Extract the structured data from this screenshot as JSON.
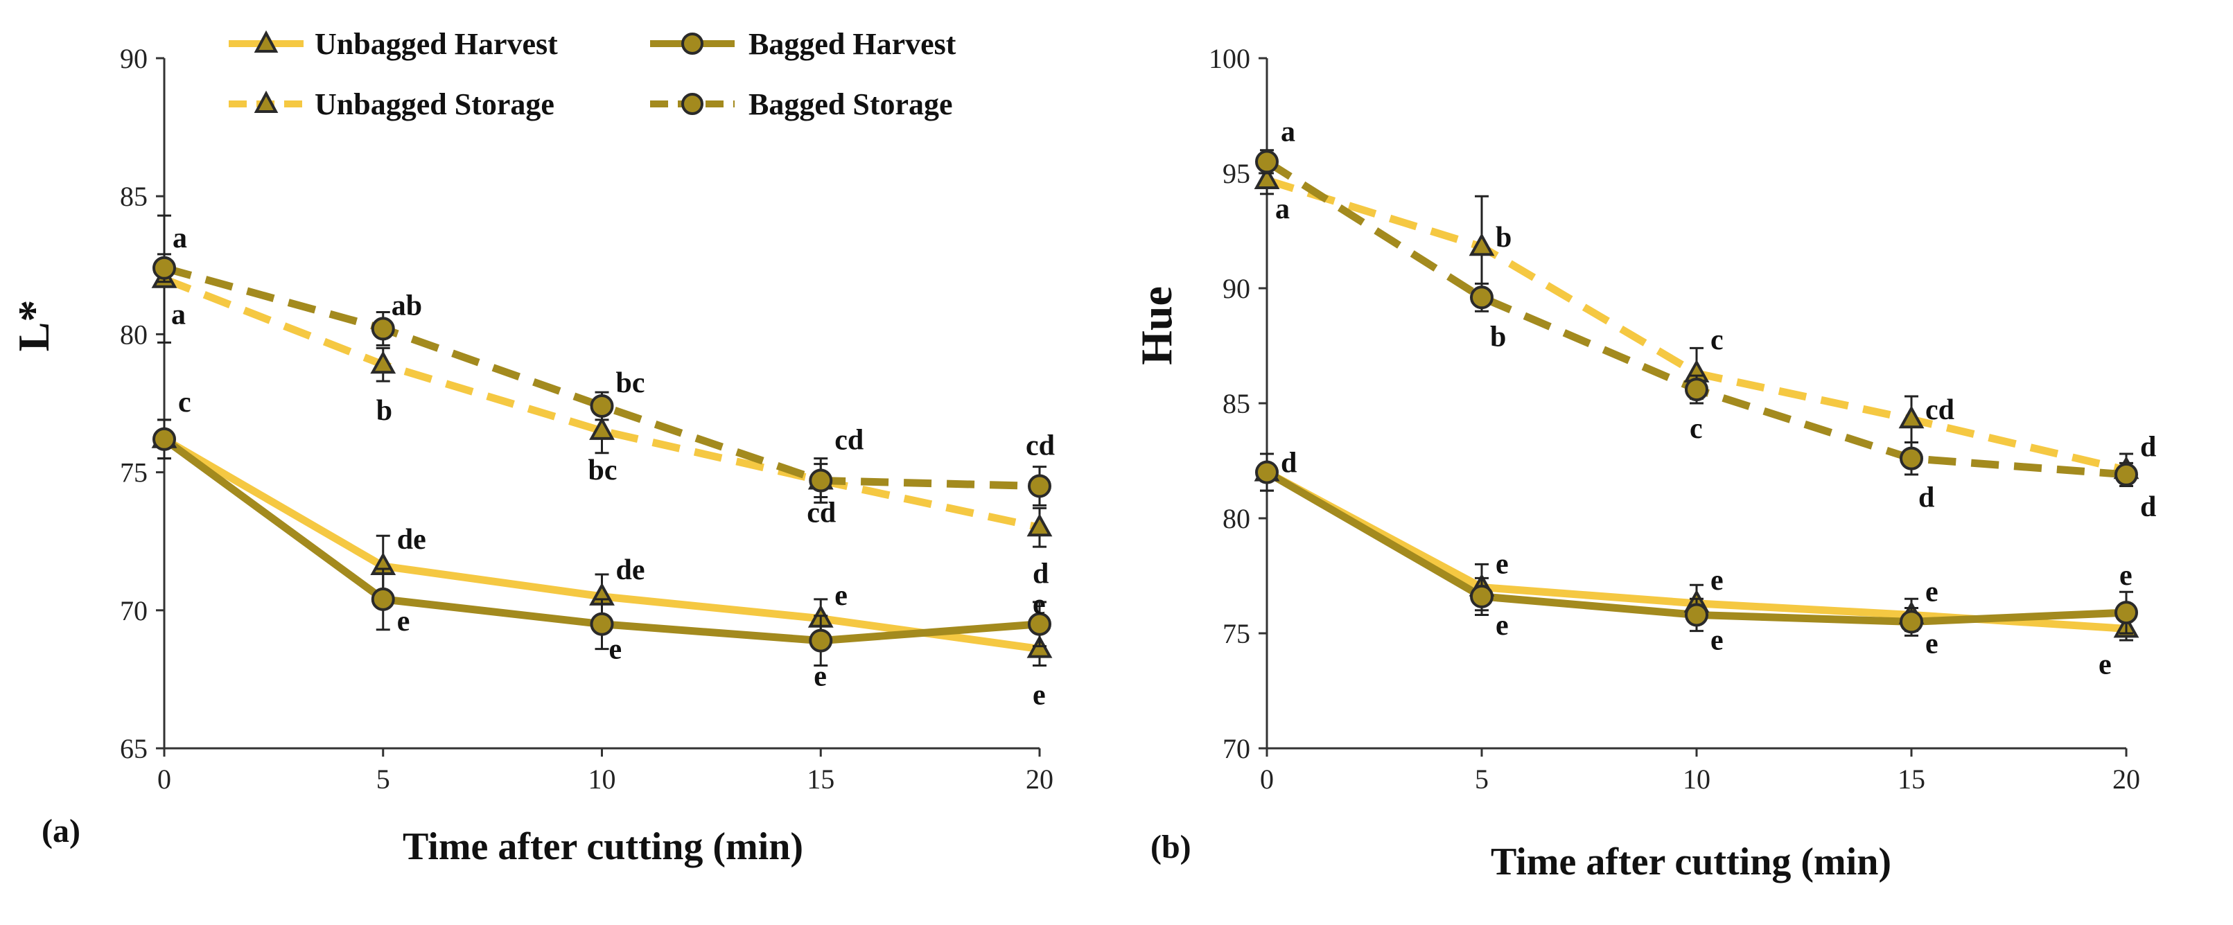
{
  "legend": {
    "unbagged_harvest": "Unbagged Harvest",
    "bagged_harvest": "Bagged Harvest",
    "unbagged_storage": "Unbagged Storage",
    "bagged_storage": "Bagged Storage"
  },
  "colors": {
    "unbagged": "#f5c842",
    "bagged": "#a38a1e",
    "marker_fill": "#a38a1e",
    "marker_stroke": "#2a2a2a",
    "axis": "#333333"
  },
  "chart_data": [
    {
      "type": "line",
      "panel_label": "(a)",
      "xlabel": "Time after cutting (min)",
      "ylabel": "L*",
      "x": [
        0,
        5,
        10,
        15,
        20
      ],
      "xticks": [
        "0",
        "5",
        "10",
        "15",
        "20"
      ],
      "yticks": [
        "65",
        "70",
        "75",
        "80",
        "85",
        "90"
      ],
      "xlim": [
        0,
        20
      ],
      "ylim": [
        65,
        90
      ],
      "series": [
        {
          "name": "Unbagged Harvest",
          "values": [
            76.2,
            71.6,
            70.5,
            69.7,
            68.6
          ],
          "errors": [
            0.7,
            1.1,
            0.8,
            0.7,
            0.6
          ],
          "letters": [
            "",
            "de",
            "de",
            "e",
            "e"
          ]
        },
        {
          "name": "Bagged Harvest",
          "values": [
            76.2,
            70.4,
            69.5,
            68.9,
            69.5
          ],
          "errors": [
            0.7,
            1.1,
            0.9,
            0.9,
            0.8
          ],
          "letters": [
            "c",
            "e",
            "e",
            "e",
            "e"
          ]
        },
        {
          "name": "Unbagged Storage",
          "values": [
            82.0,
            78.9,
            76.5,
            74.7,
            73.0
          ],
          "errors": [
            2.3,
            0.6,
            0.8,
            0.6,
            0.7
          ],
          "letters": [
            "a",
            "b",
            "bc",
            "cd",
            "d"
          ]
        },
        {
          "name": "Bagged Storage",
          "values": [
            82.4,
            80.2,
            77.4,
            74.7,
            74.5
          ],
          "errors": [
            0.5,
            0.6,
            0.5,
            0.8,
            0.7
          ],
          "letters": [
            "a",
            "ab",
            "bc",
            "cd",
            "cd"
          ]
        }
      ]
    },
    {
      "type": "line",
      "panel_label": "(b)",
      "xlabel": "Time after cutting (min)",
      "ylabel": "Hue",
      "x": [
        0,
        5,
        10,
        15,
        20
      ],
      "xticks": [
        "0",
        "5",
        "10",
        "15",
        "20"
      ],
      "yticks": [
        "70",
        "75",
        "80",
        "85",
        "90",
        "95",
        "100"
      ],
      "xlim": [
        0,
        20
      ],
      "ylim": [
        70,
        100
      ],
      "series": [
        {
          "name": "Unbagged Harvest",
          "values": [
            82.0,
            77.0,
            76.3,
            75.8,
            75.2
          ],
          "errors": [
            0.8,
            1.0,
            0.8,
            0.7,
            0.5
          ],
          "letters": [
            "",
            "e",
            "e",
            "e",
            "e"
          ]
        },
        {
          "name": "Bagged Harvest",
          "values": [
            82.0,
            76.6,
            75.8,
            75.5,
            75.9
          ],
          "errors": [
            0.8,
            0.8,
            0.7,
            0.6,
            0.9
          ],
          "letters": [
            "d",
            "e",
            "e",
            "e",
            "e"
          ]
        },
        {
          "name": "Unbagged Storage",
          "values": [
            94.7,
            91.8,
            86.3,
            84.3,
            82.1
          ],
          "errors": [
            0.6,
            2.2,
            1.1,
            1.0,
            0.7
          ],
          "letters": [
            "a",
            "b",
            "c",
            "cd",
            "d"
          ]
        },
        {
          "name": "Bagged Storage",
          "values": [
            95.5,
            89.6,
            85.6,
            82.6,
            81.9
          ],
          "errors": [
            0.5,
            0.6,
            0.6,
            0.7,
            0.5
          ],
          "letters": [
            "a",
            "b",
            "c",
            "d",
            "d"
          ]
        }
      ]
    }
  ]
}
